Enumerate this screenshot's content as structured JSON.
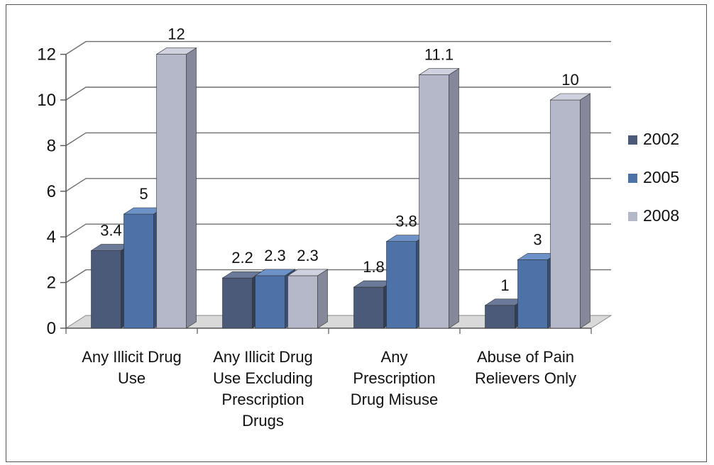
{
  "chart_data": {
    "type": "bar",
    "categories": [
      [
        "Any Illicit Drug",
        "Use"
      ],
      [
        "Any Illicit Drug",
        "Use Excluding",
        "Prescription",
        "Drugs"
      ],
      [
        "Any",
        "Prescription",
        "Drug Misuse"
      ],
      [
        "Abuse of Pain",
        "Relievers Only"
      ]
    ],
    "series": [
      {
        "name": "2002",
        "values": [
          3.4,
          2.2,
          1.8,
          1
        ],
        "labels": [
          "3.4",
          "2.2",
          "1.8",
          "1"
        ]
      },
      {
        "name": "2005",
        "values": [
          5,
          2.3,
          3.8,
          3
        ],
        "labels": [
          "5",
          "2.3",
          "3.8",
          "3"
        ]
      },
      {
        "name": "2008",
        "values": [
          12,
          2.3,
          11.1,
          10
        ],
        "labels": [
          "12",
          "2.3",
          "11.1",
          "10"
        ]
      }
    ],
    "y_ticks": [
      "0",
      "2",
      "4",
      "6",
      "8",
      "10",
      "12"
    ],
    "ylim": [
      0,
      12
    ],
    "grid": true,
    "legend_position": "right",
    "colors": {
      "2002": {
        "front": "#4a5a78",
        "side": "#323e55",
        "top": "#6a7a98"
      },
      "2005": {
        "front": "#4d72a8",
        "side": "#34507a",
        "top": "#6d92c8"
      },
      "2008": {
        "front": "#b4b8c8",
        "side": "#84889a",
        "top": "#cfd2de"
      }
    }
  }
}
